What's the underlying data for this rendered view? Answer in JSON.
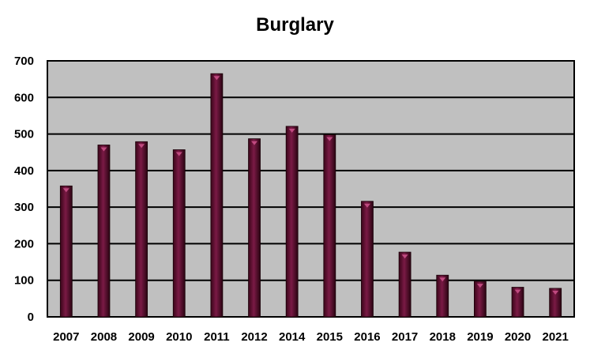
{
  "chart_data": {
    "type": "bar",
    "title": "Burglary",
    "xlabel": "",
    "ylabel": "",
    "categories": [
      "2007",
      "2008",
      "2009",
      "2010",
      "2011",
      "2012",
      "2014",
      "2015",
      "2016",
      "2017",
      "2018",
      "2019",
      "2020",
      "2021"
    ],
    "values": [
      358,
      470,
      479,
      457,
      665,
      487,
      521,
      498,
      316,
      177,
      114,
      97,
      81,
      78
    ],
    "ylim": [
      0,
      700
    ],
    "yticks": [
      0,
      100,
      200,
      300,
      400,
      500,
      600,
      700
    ],
    "grid": true,
    "legend": "none",
    "colors": {
      "plot_background": "#c0c0c0",
      "bar_fill": "#5a0f2e",
      "bar_highlight": "#8a2350",
      "gridline": "#000000"
    }
  }
}
